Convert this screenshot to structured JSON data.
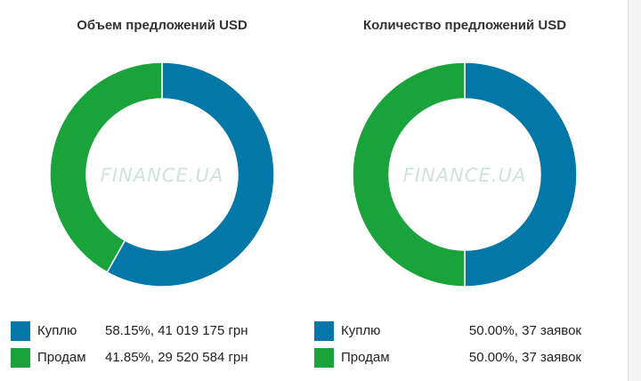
{
  "colors": {
    "buy": "#0277a8",
    "sell": "#1aa33b",
    "watermark": "#cfe3d8"
  },
  "watermark": "FINANCE.UA",
  "chart_data": [
    {
      "type": "pie",
      "title": "Объем предложений USD",
      "slices": [
        {
          "label": "Куплю",
          "percent": 58.15,
          "value_text": "58.15%, 41 019 175 грн"
        },
        {
          "label": "Продам",
          "percent": 41.85,
          "value_text": "41.85%, 29 520 584 грн"
        }
      ]
    },
    {
      "type": "pie",
      "title": "Количество предложений USD",
      "slices": [
        {
          "label": "Куплю",
          "percent": 50.0,
          "value_text": "50.00%, 37 заявок"
        },
        {
          "label": "Продам",
          "percent": 50.0,
          "value_text": "50.00%, 37 заявок"
        }
      ]
    }
  ]
}
